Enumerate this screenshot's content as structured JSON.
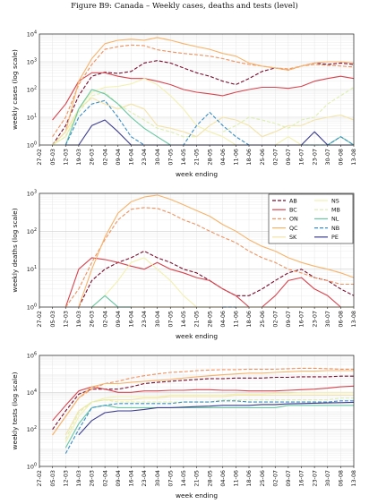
{
  "figure_title": "Figure B9: Canada – Weekly cases, deaths and tests (level)",
  "series_styles": [
    {
      "name": "AB",
      "color": "#7a0c2e",
      "dash": "4 2"
    },
    {
      "name": "BC",
      "color": "#d9424c",
      "dash": ""
    },
    {
      "name": "ON",
      "color": "#f0915e",
      "dash": "4 2"
    },
    {
      "name": "QC",
      "color": "#f7b36a",
      "dash": ""
    },
    {
      "name": "SK",
      "color": "#f3e3a8",
      "dash": ""
    },
    {
      "name": "NS",
      "color": "#f2f0b0",
      "dash": ""
    },
    {
      "name": "MB",
      "color": "#dcefae",
      "dash": "4 2"
    },
    {
      "name": "NL",
      "color": "#66c7a3",
      "dash": ""
    },
    {
      "name": "NB",
      "color": "#3a8fc7",
      "dash": "4 2"
    },
    {
      "name": "PE",
      "color": "#3a3c8f",
      "dash": ""
    }
  ],
  "chart_data": [
    {
      "type": "line",
      "yscale": "log",
      "ylim": [
        1,
        10000
      ],
      "title": "",
      "xlabel": "week ending",
      "ylabel": "weekly cases (log scale)",
      "ytick_labels": [
        "10^0",
        "10^1",
        "10^2",
        "10^3",
        "10^4"
      ],
      "grid": true,
      "legend": null,
      "categories": [
        "27-02",
        "05-03",
        "12-03",
        "19-03",
        "26-03",
        "02-04",
        "09-04",
        "16-04",
        "23-04",
        "30-04",
        "07-05",
        "14-05",
        "21-05",
        "28-05",
        "04-06",
        "11-06",
        "18-06",
        "25-06",
        "02-07",
        "09-07",
        "16-07",
        "23-07",
        "30-07",
        "06-08",
        "13-08"
      ],
      "series": [
        {
          "name": "AB",
          "values": [
            null,
            1,
            5,
            60,
            300,
            420,
            380,
            450,
            900,
            1100,
            900,
            600,
            400,
            300,
            200,
            150,
            250,
            450,
            600,
            500,
            700,
            900,
            800,
            900,
            800
          ]
        },
        {
          "name": "BC",
          "values": [
            null,
            8,
            30,
            200,
            400,
            400,
            300,
            250,
            250,
            200,
            150,
            100,
            80,
            70,
            60,
            80,
            100,
            120,
            120,
            110,
            130,
            200,
            250,
            300,
            250
          ]
        },
        {
          "name": "ON",
          "values": [
            null,
            2,
            10,
            150,
            800,
            2800,
            3500,
            4000,
            3800,
            2700,
            2300,
            2000,
            1800,
            1600,
            1300,
            1000,
            800,
            700,
            600,
            550,
            700,
            800,
            750,
            700,
            650
          ]
        },
        {
          "name": "QC",
          "values": [
            null,
            1,
            3,
            200,
            1300,
            4500,
            6000,
            6500,
            6000,
            7500,
            6000,
            4500,
            3500,
            2800,
            2000,
            1600,
            900,
            700,
            600,
            500,
            700,
            900,
            1000,
            1000,
            900
          ]
        },
        {
          "name": "SK",
          "values": [
            null,
            1,
            3,
            20,
            50,
            30,
            20,
            30,
            20,
            5,
            4,
            3,
            2,
            5,
            10,
            8,
            5,
            2,
            3,
            5,
            5,
            8,
            10,
            12,
            8
          ]
        },
        {
          "name": "NS",
          "values": [
            null,
            1,
            2,
            20,
            80,
            120,
            130,
            160,
            250,
            150,
            60,
            20,
            5,
            3,
            2,
            1,
            null,
            null,
            1,
            2,
            1,
            null,
            1,
            2,
            1
          ]
        },
        {
          "name": "MB",
          "values": [
            null,
            1,
            2,
            15,
            60,
            80,
            30,
            15,
            8,
            4,
            3,
            2,
            2,
            null,
            3,
            5,
            10,
            8,
            6,
            4,
            8,
            10,
            30,
            60,
            120
          ]
        },
        {
          "name": "NL",
          "values": [
            null,
            null,
            1,
            20,
            100,
            70,
            30,
            10,
            4,
            2,
            1,
            1,
            1,
            1,
            1,
            1,
            1,
            1,
            1,
            1,
            1,
            1,
            1,
            2,
            1
          ]
        },
        {
          "name": "NB",
          "values": [
            null,
            null,
            1,
            10,
            30,
            40,
            10,
            2,
            1,
            1,
            1,
            1,
            5,
            15,
            5,
            2,
            1,
            1,
            1,
            1,
            1,
            1,
            1,
            2,
            1
          ]
        },
        {
          "name": "PE",
          "values": [
            null,
            null,
            1,
            1,
            5,
            8,
            3,
            1,
            1,
            1,
            1,
            1,
            1,
            1,
            1,
            1,
            1,
            1,
            1,
            1,
            1,
            3,
            1,
            1,
            1
          ]
        }
      ]
    },
    {
      "type": "line",
      "yscale": "log",
      "ylim": [
        1,
        1000
      ],
      "title": "",
      "xlabel": "week ending",
      "ylabel": "weekly deaths (log scale)",
      "ytick_labels": [
        "10^0",
        "10^1",
        "10^2",
        "10^3"
      ],
      "grid": true,
      "legend": "top-right",
      "categories": [
        "27-02",
        "05-03",
        "12-03",
        "19-03",
        "26-03",
        "02-04",
        "09-04",
        "16-04",
        "23-04",
        "30-04",
        "07-05",
        "14-05",
        "21-05",
        "28-05",
        "04-06",
        "11-06",
        "18-06",
        "25-06",
        "02-07",
        "09-07",
        "16-07",
        "23-07",
        "30-07",
        "06-08",
        "13-08"
      ],
      "series": [
        {
          "name": "AB",
          "values": [
            null,
            null,
            null,
            1,
            5,
            10,
            15,
            20,
            30,
            20,
            15,
            10,
            8,
            5,
            3,
            2,
            2,
            3,
            5,
            8,
            10,
            6,
            5,
            3,
            2
          ]
        },
        {
          "name": "BC",
          "values": [
            null,
            null,
            1,
            10,
            20,
            18,
            15,
            12,
            10,
            15,
            10,
            8,
            6,
            5,
            3,
            2,
            1,
            1,
            2,
            5,
            6,
            3,
            2,
            1,
            1
          ]
        },
        {
          "name": "ON",
          "values": [
            null,
            null,
            1,
            3,
            15,
            60,
            200,
            380,
            420,
            400,
            300,
            200,
            150,
            100,
            70,
            50,
            30,
            20,
            15,
            10,
            8,
            6,
            5,
            4,
            4
          ]
        },
        {
          "name": "QC",
          "values": [
            null,
            null,
            null,
            1,
            10,
            70,
            300,
            600,
            800,
            900,
            700,
            500,
            350,
            250,
            150,
            100,
            60,
            40,
            30,
            20,
            15,
            12,
            10,
            8,
            6
          ]
        },
        {
          "name": "SK",
          "values": [
            null,
            null,
            null,
            null,
            1,
            1,
            1,
            1,
            1,
            1,
            1,
            1,
            1,
            1,
            1,
            1,
            1,
            1,
            1,
            1,
            1,
            1,
            1,
            1,
            1
          ]
        },
        {
          "name": "NS",
          "values": [
            null,
            null,
            null,
            null,
            1,
            2,
            5,
            15,
            20,
            10,
            5,
            2,
            1,
            1,
            null,
            null,
            null,
            null,
            null,
            null,
            null,
            null,
            null,
            null,
            null
          ]
        },
        {
          "name": "MB",
          "values": [
            null,
            null,
            null,
            null,
            1,
            1,
            1,
            1,
            null,
            null,
            null,
            null,
            null,
            null,
            null,
            null,
            null,
            null,
            null,
            null,
            null,
            null,
            null,
            1,
            1
          ]
        },
        {
          "name": "NL",
          "values": [
            null,
            null,
            null,
            null,
            1,
            2,
            1,
            1,
            null,
            null,
            null,
            null,
            null,
            null,
            null,
            null,
            null,
            null,
            null,
            null,
            null,
            null,
            null,
            null,
            null
          ]
        },
        {
          "name": "NB",
          "values": [
            null,
            null,
            null,
            null,
            null,
            null,
            null,
            null,
            null,
            null,
            null,
            null,
            null,
            null,
            1,
            1,
            null,
            null,
            null,
            null,
            null,
            null,
            null,
            null,
            null
          ]
        },
        {
          "name": "PE",
          "values": [
            null,
            null,
            null,
            null,
            null,
            null,
            null,
            null,
            null,
            null,
            null,
            null,
            null,
            null,
            null,
            null,
            null,
            null,
            null,
            null,
            null,
            null,
            null,
            null,
            null
          ]
        }
      ],
      "legend_entries": [
        "AB",
        "NS",
        "BC",
        "MB",
        "ON",
        "NL",
        "QC",
        "NB",
        "SK",
        "PE"
      ]
    },
    {
      "type": "line",
      "yscale": "log",
      "ylim": [
        1,
        1000000
      ],
      "title": "",
      "xlabel": "week ending",
      "ylabel": "weekly tests (log scale)",
      "ytick_labels": [
        "10^0",
        "10^2",
        "10^4",
        "10^6"
      ],
      "grid": true,
      "legend": null,
      "categories": [
        "27-02",
        "05-03",
        "12-03",
        "19-03",
        "26-03",
        "02-04",
        "09-04",
        "16-04",
        "23-04",
        "30-04",
        "07-05",
        "14-05",
        "21-05",
        "28-05",
        "04-06",
        "11-06",
        "18-06",
        "25-06",
        "02-07",
        "09-07",
        "16-07",
        "23-07",
        "30-07",
        "06-08",
        "13-08"
      ],
      "series": [
        {
          "name": "AB",
          "values": [
            null,
            100,
            1000,
            8000,
            15000,
            15000,
            15000,
            20000,
            30000,
            35000,
            40000,
            45000,
            50000,
            55000,
            55000,
            60000,
            60000,
            60000,
            65000,
            65000,
            70000,
            70000,
            70000,
            75000,
            75000
          ]
        },
        {
          "name": "BC",
          "values": [
            null,
            300,
            2000,
            12000,
            20000,
            15000,
            10000,
            10000,
            12000,
            12000,
            13000,
            13000,
            14000,
            14000,
            13000,
            13000,
            12000,
            12000,
            12000,
            13000,
            14000,
            15000,
            17000,
            20000,
            22000
          ]
        },
        {
          "name": "ON",
          "values": [
            null,
            50,
            500,
            5000,
            15000,
            30000,
            40000,
            60000,
            80000,
            100000,
            120000,
            130000,
            150000,
            160000,
            170000,
            170000,
            180000,
            180000,
            180000,
            190000,
            200000,
            200000,
            190000,
            180000,
            180000
          ]
        },
        {
          "name": "QC",
          "values": [
            null,
            50,
            500,
            5000,
            20000,
            30000,
            30000,
            35000,
            40000,
            45000,
            50000,
            60000,
            70000,
            80000,
            90000,
            100000,
            110000,
            110000,
            120000,
            130000,
            140000,
            140000,
            150000,
            150000,
            150000
          ]
        },
        {
          "name": "SK",
          "values": [
            null,
            null,
            50,
            1000,
            3000,
            4000,
            4000,
            4000,
            5000,
            5000,
            6000,
            6000,
            6000,
            6000,
            6000,
            7000,
            7000,
            7000,
            7000,
            7000,
            7000,
            7000,
            7000,
            7000,
            7000
          ]
        },
        {
          "name": "NS",
          "values": [
            null,
            null,
            20,
            500,
            3000,
            5000,
            6000,
            6000,
            6000,
            6000,
            7000,
            7000,
            7000,
            7000,
            7000,
            8000,
            8000,
            8000,
            9000,
            9000,
            10000,
            10000,
            10000,
            10000,
            10000
          ]
        },
        {
          "name": "MB",
          "values": [
            null,
            null,
            30,
            800,
            3000,
            4000,
            3000,
            3000,
            3000,
            3000,
            3000,
            3000,
            3000,
            3000,
            4000,
            4000,
            4000,
            4000,
            4000,
            4000,
            4000,
            4000,
            4000,
            5000,
            5000
          ]
        },
        {
          "name": "NL",
          "values": [
            null,
            null,
            10,
            200,
            1500,
            2000,
            1500,
            1500,
            1500,
            1500,
            1500,
            1500,
            1500,
            1500,
            1500,
            1500,
            1500,
            1500,
            1500,
            2000,
            2000,
            2000,
            2000,
            2000,
            2000
          ]
        },
        {
          "name": "NB",
          "values": [
            null,
            null,
            5,
            100,
            1500,
            2000,
            2500,
            2500,
            2500,
            2500,
            2500,
            3000,
            3000,
            3000,
            3500,
            3500,
            3000,
            3000,
            3000,
            3000,
            3000,
            3000,
            3000,
            3500,
            3500
          ]
        },
        {
          "name": "PE",
          "values": [
            null,
            null,
            null,
            50,
            300,
            800,
            1000,
            1000,
            1200,
            1500,
            1500,
            1600,
            1700,
            1800,
            2000,
            2000,
            2000,
            2200,
            2200,
            2400,
            2500,
            2600,
            2700,
            2800,
            2900
          ]
        }
      ]
    }
  ]
}
